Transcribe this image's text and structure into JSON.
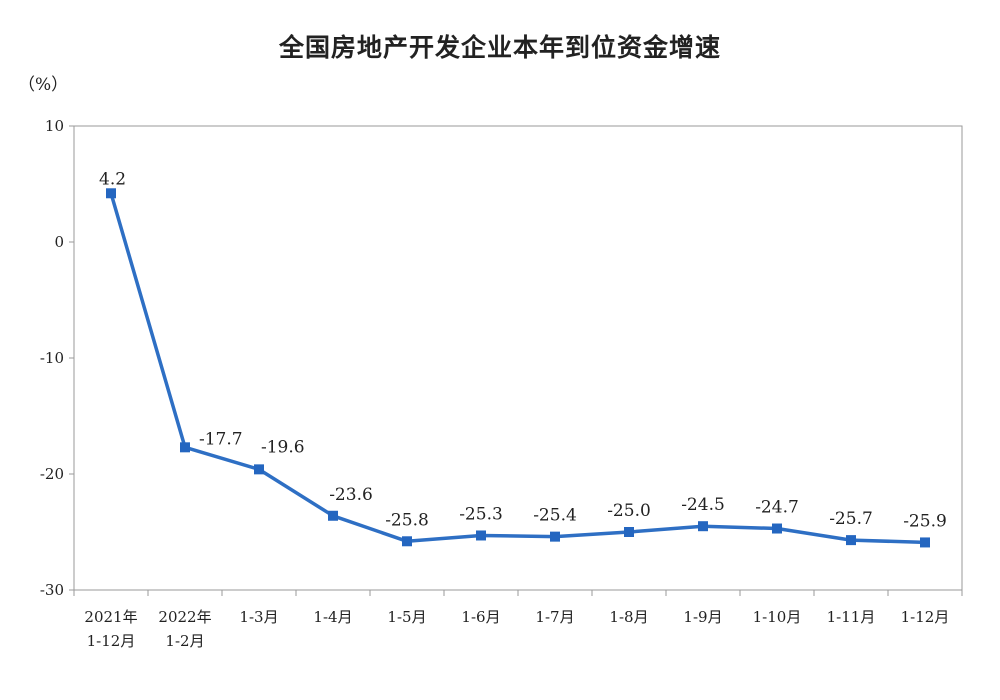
{
  "chart_data": {
    "type": "line",
    "title": "全国房地产开发企业本年到位资金增速",
    "unit": "（%）",
    "categories": [
      [
        "2021年",
        "1-12月"
      ],
      [
        "2022年",
        "1-2月"
      ],
      [
        "1-3月"
      ],
      [
        "1-4月"
      ],
      [
        "1-5月"
      ],
      [
        "1-6月"
      ],
      [
        "1-7月"
      ],
      [
        "1-8月"
      ],
      [
        "1-9月"
      ],
      [
        "1-10月"
      ],
      [
        "1-11月"
      ],
      [
        "1-12月"
      ]
    ],
    "values": [
      4.2,
      -17.7,
      -19.6,
      -23.6,
      -25.8,
      -25.3,
      -25.4,
      -25.0,
      -24.5,
      -24.7,
      -25.7,
      -25.9
    ],
    "value_labels": [
      "4.2",
      "-17.7",
      "-19.6",
      "-23.6",
      "-25.8",
      "-25.3",
      "-25.4",
      "-25.0",
      "-24.5",
      "-24.7",
      "-25.7",
      "-25.9"
    ],
    "ylim": [
      -30,
      10
    ],
    "yticks": [
      10,
      0,
      -10,
      -20,
      -30
    ],
    "xlabel": "",
    "ylabel": "",
    "grid": false,
    "legend": "none",
    "line_color": "#2e6fc4",
    "marker_color": "#2466c0"
  }
}
